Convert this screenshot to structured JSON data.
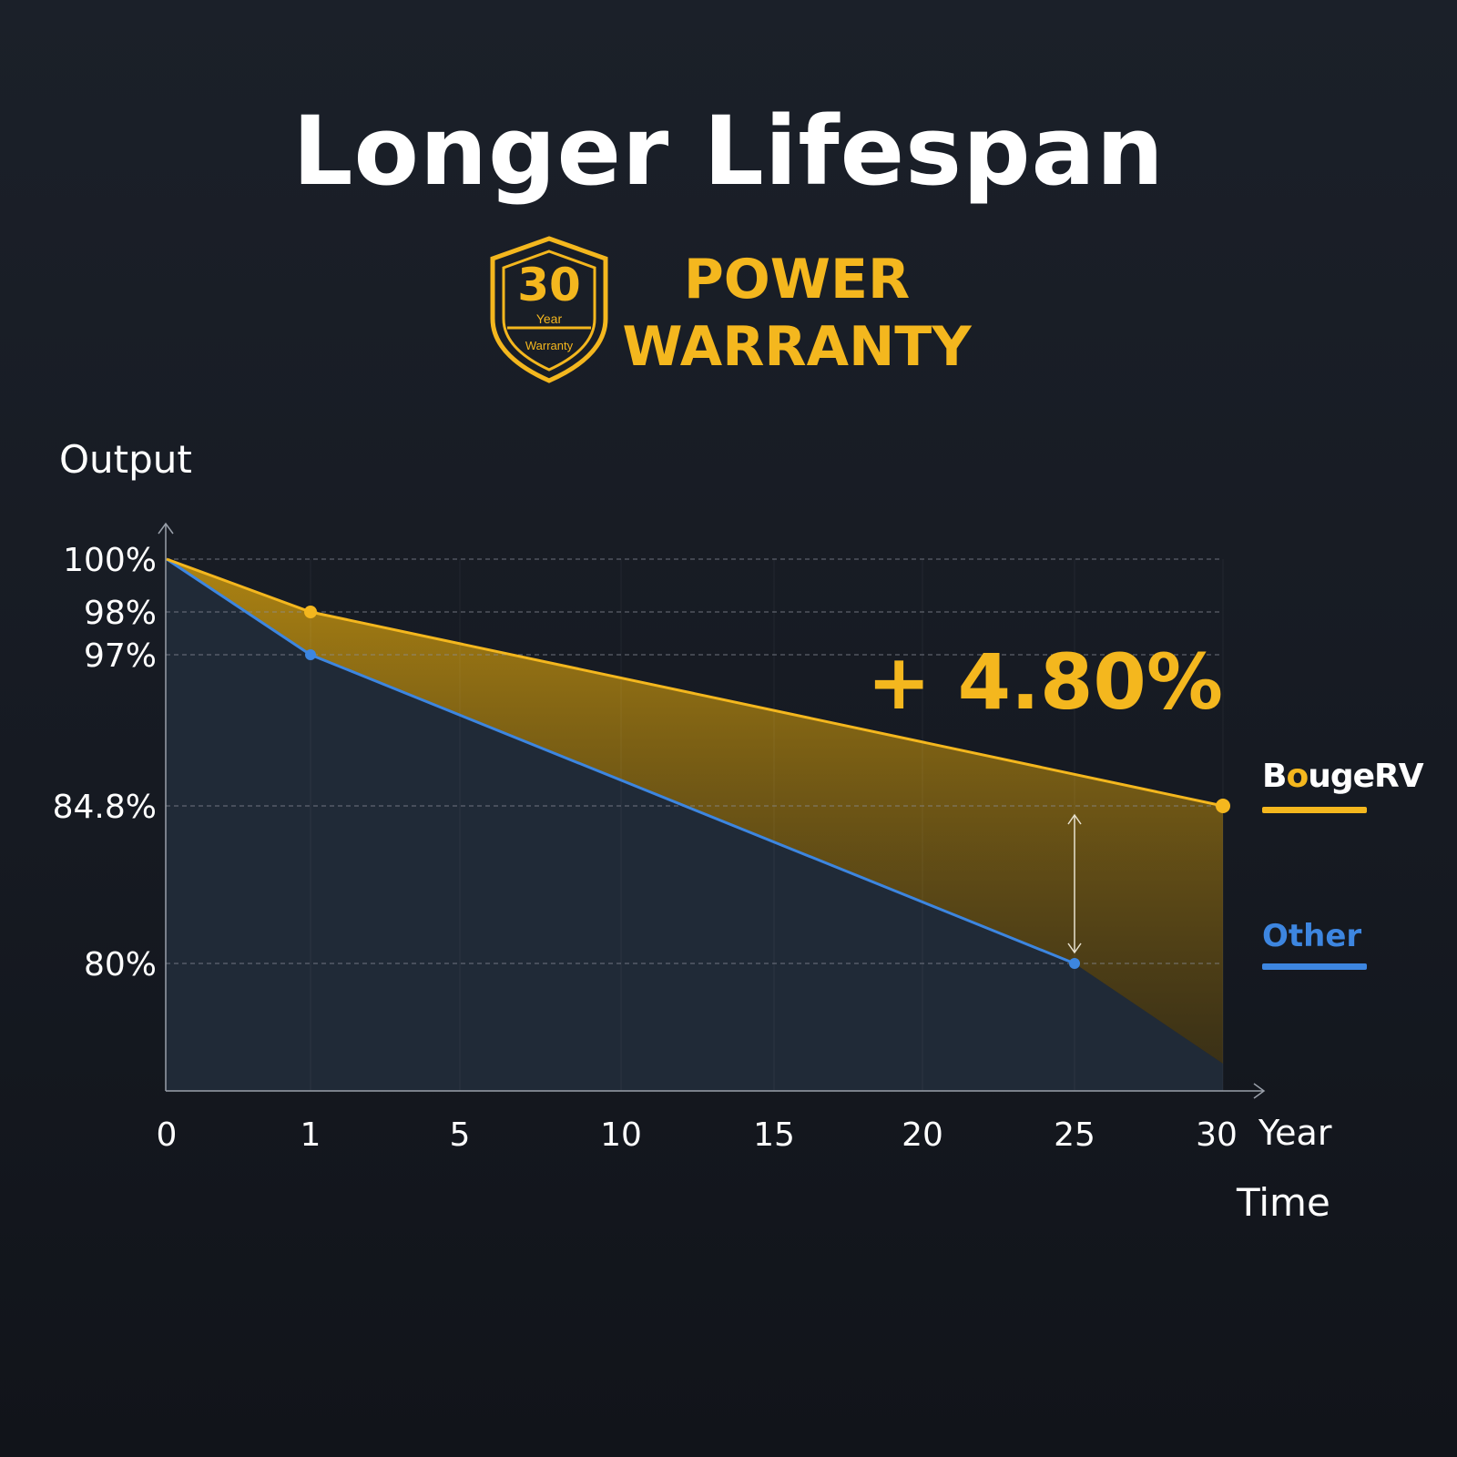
{
  "heading": {
    "title": "Longer Lifespan",
    "badge_number": "30",
    "badge_year": "Year",
    "badge_warranty": "Warranty",
    "warranty_line1": "POWER",
    "warranty_line2": "WARRANTY"
  },
  "colors": {
    "accent": "#f4b71e",
    "other": "#3d86e0",
    "background": "#161a22",
    "text": "#ffffff"
  },
  "legend": {
    "brand_prefix": "B",
    "brand_o": "o",
    "brand_suffix": "ugeRV",
    "other": "Other"
  },
  "chart_data": {
    "type": "line",
    "ylabel": "Output",
    "xlabel": "Time",
    "xunit": "Year",
    "x_ticks": [
      0,
      1,
      5,
      10,
      15,
      20,
      25,
      30
    ],
    "y_ticks": [
      "100%",
      "98%",
      "97%",
      "84.8%",
      "80%"
    ],
    "y_tick_values": [
      100,
      98,
      97,
      84.8,
      80
    ],
    "series": [
      {
        "name": "BougeRV",
        "x": [
          0,
          1,
          30
        ],
        "y": [
          100,
          98,
          84.8
        ],
        "color": "#f4b71e"
      },
      {
        "name": "Other",
        "x": [
          0,
          1,
          25
        ],
        "y": [
          100,
          97,
          80
        ],
        "color": "#3d86e0"
      }
    ],
    "annotation": "+ 4.80%",
    "grid": "dashed horizontal lines at y ticks"
  }
}
